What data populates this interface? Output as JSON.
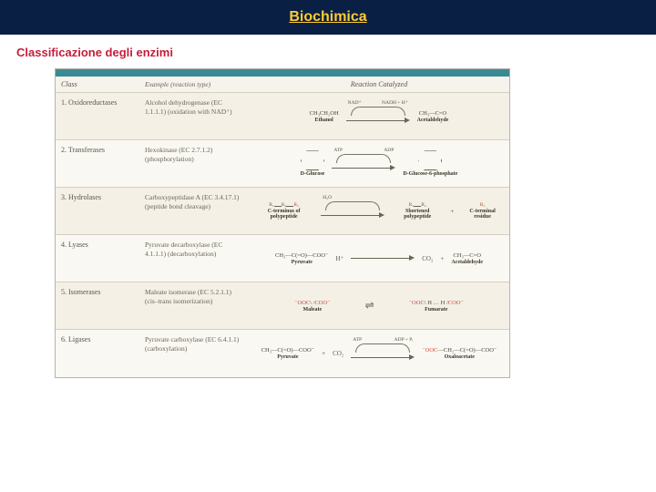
{
  "header": {
    "title": "Biochimica"
  },
  "subtitle": "Classificazione degli  enzimi",
  "table": {
    "background_teal": "#3a8a95",
    "header_bg": "#f6f3ec",
    "row_alt_bg": [
      "#faf8f2",
      "#f4f0e6"
    ],
    "border_color": "#d5cfc2",
    "text_color": "#5c5648",
    "accent_red": "#c94a3a",
    "columns": [
      "Class",
      "Example (reaction type)",
      "Reaction Catalyzed"
    ],
    "rows": [
      {
        "class": "1. Oxidoreductases",
        "example": "Alcohol dehydrogenase (EC 1.1.1.1) (oxidation with NAD⁺)",
        "reaction": {
          "substrate": {
            "formula": "CH₃CH₂OH",
            "label": "Ethanol"
          },
          "cofactor_in": "NAD⁺",
          "cofactor_out": "NADH + H⁺",
          "product": {
            "formula": "CH₃—C=O",
            "label": "Acetaldehyde"
          }
        }
      },
      {
        "class": "2. Transferases",
        "example": "Hexokinase (EC 2.7.1.2) (phosphorylation)",
        "reaction": {
          "substrate": {
            "formula": "hexose ring OH",
            "label": "D-Glucose"
          },
          "cofactor_in": "ATP",
          "cofactor_out": "ADP",
          "product": {
            "formula": "hexose ring OPO₃²⁻",
            "label": "D-Glucose-6-phosphate"
          }
        }
      },
      {
        "class": "3. Hydrolases",
        "example": "Carboxypeptidase A (EC 3.4.17.1) (peptide bond cleavage)",
        "reaction": {
          "substrate": {
            "label": "C-terminus of polypeptide"
          },
          "cofactor_in": "H₂O",
          "product": {
            "label": "Shortened polypeptide"
          },
          "extra": {
            "label": "C-terminal residue"
          }
        }
      },
      {
        "class": "4. Lyases",
        "example": "Pyruvate decarboxylase (EC 4.1.1.1) (decarboxylation)",
        "reaction": {
          "substrate": {
            "formula": "CH₃—C(=O)—COO⁻",
            "label": "Pyruvate"
          },
          "plus_in": "H⁺",
          "byproduct": "CO₂",
          "product": {
            "formula": "CH₃—C=O",
            "label": "Acetaldehyde"
          }
        }
      },
      {
        "class": "5. Isomerases",
        "example": "Maleate isomerase (EC 5.2.1.1) (cis–trans isomerization)",
        "reaction": {
          "substrate": {
            "formula": "⁻OOC—CH=CH—COO⁻ (cis)",
            "label": "Maleate"
          },
          "product": {
            "formula": "⁻OOC—CH=CH—COO⁻ (trans)",
            "label": "Fumarate"
          },
          "equilibrium": true
        }
      },
      {
        "class": "6. Ligases",
        "example": "Pyruvate carboxylase (EC 6.4.1.1) (carboxylation)",
        "reaction": {
          "substrate": {
            "formula": "CH₃—C(=O)—COO⁻",
            "label": "Pyruvate"
          },
          "plus_in": "CO₂",
          "cofactor_in": "ATP",
          "cofactor_out": "ADP + Pᵢ",
          "product": {
            "formula": "⁻OOC—CH₂—C(=O)—COO⁻",
            "label": "Oxaloacetate"
          }
        }
      }
    ]
  }
}
